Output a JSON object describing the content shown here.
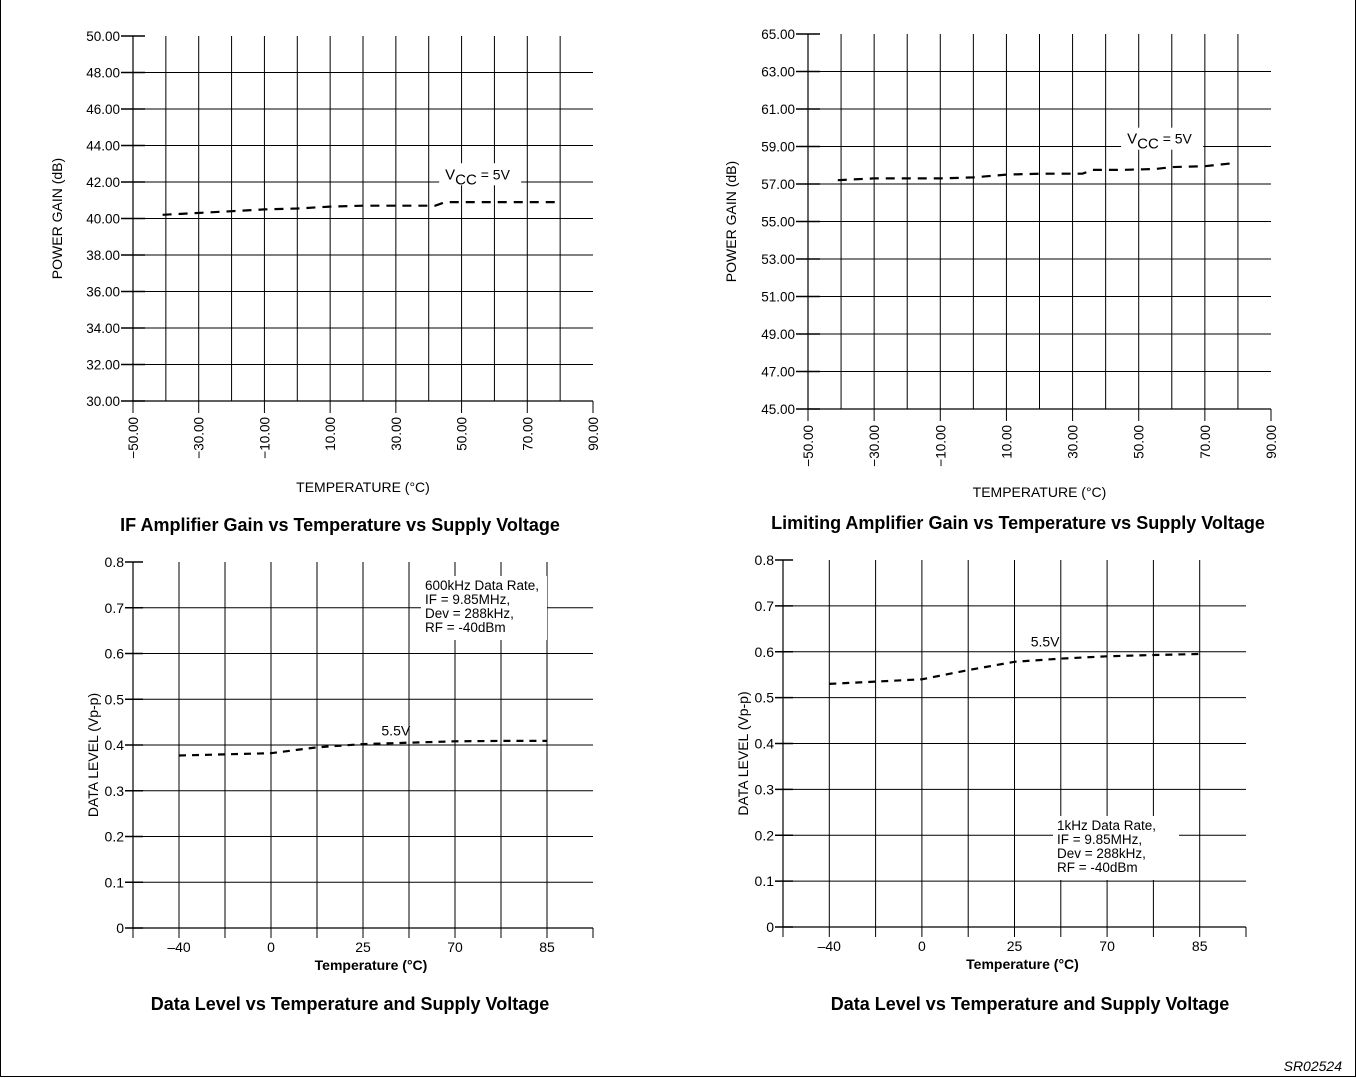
{
  "doc_id": "SR02524",
  "colors": {
    "ink": "#000000",
    "paper": "#ffffff"
  },
  "chart_data": [
    {
      "type": "line",
      "title": "IF Amplifier Gain vs Temperature vs Supply Voltage",
      "xlabel": "TEMPERATURE (°C)",
      "ylabel": "POWER GAIN (dB)",
      "xlim": [
        -50,
        90
      ],
      "ylim": [
        30,
        50
      ],
      "x_ticks": [
        "−50.00",
        "−30.00",
        "−10.00",
        "10.00",
        "30.00",
        "50.00",
        "70.00",
        "90.00"
      ],
      "y_ticks": [
        "30.00",
        "32.00",
        "34.00",
        "36.00",
        "38.00",
        "40.00",
        "42.00",
        "44.00",
        "46.00",
        "48.00",
        "50.00"
      ],
      "grid": true,
      "annotation": {
        "main": "V",
        "sub": "CC",
        "rest": " = 5V"
      },
      "series": [
        {
          "values_x": [
            -41,
            -20,
            -10,
            0,
            10,
            20,
            30,
            42,
            45,
            55,
            65,
            75,
            80
          ],
          "values_y": [
            40.2,
            40.4,
            40.5,
            40.55,
            40.65,
            40.7,
            40.7,
            40.7,
            40.9,
            40.9,
            40.9,
            40.9,
            40.9
          ]
        }
      ]
    },
    {
      "type": "line",
      "title": "Limiting Amplifier Gain vs Temperature vs Supply Voltage",
      "xlabel": "TEMPERATURE (°C)",
      "ylabel": "POWER GAIN (dB)",
      "xlim": [
        -50,
        90
      ],
      "ylim": [
        45,
        65
      ],
      "x_ticks": [
        "−50.00",
        "−30.00",
        "−10.00",
        "10.00",
        "30.00",
        "50.00",
        "70.00",
        "90.00"
      ],
      "y_ticks": [
        "45.00",
        "47.00",
        "49.00",
        "51.00",
        "53.00",
        "55.00",
        "57.00",
        "59.00",
        "61.00",
        "63.00",
        "65.00"
      ],
      "grid": true,
      "annotation": {
        "main": "V",
        "sub": "CC",
        "rest": " = 5V"
      },
      "series": [
        {
          "values_x": [
            -41,
            -30,
            -20,
            -10,
            0,
            10,
            20,
            30,
            33,
            36,
            45,
            55,
            60,
            70,
            78
          ],
          "values_y": [
            57.2,
            57.3,
            57.3,
            57.3,
            57.35,
            57.5,
            57.55,
            57.55,
            57.55,
            57.75,
            57.75,
            57.8,
            57.9,
            57.95,
            58.1
          ]
        }
      ]
    },
    {
      "type": "line",
      "title": "Data Level vs Temperature and Supply Voltage",
      "xlabel": "Temperature (°C)",
      "ylabel": "DATA LEVEL (Vp-p)",
      "ylim": [
        0,
        0.8
      ],
      "x_tick_labels": [
        "–40",
        "0",
        "25",
        "70",
        "85"
      ],
      "x_tick_label_index": [
        1,
        3,
        5,
        7,
        9
      ],
      "x_grid_count": 10,
      "y_ticks": [
        "0",
        "0.1",
        "0.2",
        "0.3",
        "0.4",
        "0.5",
        "0.6",
        "0.7",
        "0.8"
      ],
      "grid": true,
      "series_label": "5.5V",
      "note": [
        "600kHz Data Rate,",
        "IF = 9.85MHz,",
        "Dev = 288kHz,",
        "RF = -40dBm"
      ],
      "series": [
        {
          "values_x": [
            1,
            3,
            4,
            5,
            6,
            7,
            8,
            9
          ],
          "values_y": [
            0.377,
            0.382,
            0.395,
            0.402,
            0.405,
            0.408,
            0.409,
            0.409
          ]
        }
      ]
    },
    {
      "type": "line",
      "title": "Data Level vs Temperature and Supply Voltage",
      "xlabel": "Temperature (°C)",
      "ylabel": "DATA LEVEL (Vp-p)",
      "ylim": [
        0,
        0.8
      ],
      "x_tick_labels": [
        "–40",
        "0",
        "25",
        "70",
        "85"
      ],
      "x_tick_label_index": [
        1,
        3,
        5,
        7,
        9
      ],
      "x_grid_count": 10,
      "y_ticks": [
        "0",
        "0.1",
        "0.2",
        "0.3",
        "0.4",
        "0.5",
        "0.6",
        "0.7",
        "0.8"
      ],
      "grid": true,
      "series_label": "5.5V",
      "note": [
        "1kHz Data Rate,",
        "IF = 9.85MHz,",
        "Dev = 288kHz,",
        "RF = -40dBm"
      ],
      "series": [
        {
          "values_x": [
            1,
            3,
            4,
            5,
            6,
            7,
            8,
            9
          ],
          "values_y": [
            0.53,
            0.54,
            0.56,
            0.578,
            0.585,
            0.59,
            0.593,
            0.595
          ]
        }
      ]
    }
  ]
}
